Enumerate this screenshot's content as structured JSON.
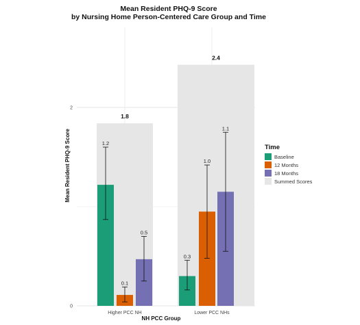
{
  "chart_data": {
    "type": "bar",
    "title": "Mean Resident PHQ-9 Score",
    "subtitle": "by Nursing Home Person-Centered Care Group and Time",
    "xlabel": "NH PCC Group",
    "ylabel": "Mean Resident PHQ-9 Score",
    "ylim": [
      0,
      2.0
    ],
    "yticks": [
      0,
      2
    ],
    "grid": true,
    "legend_position": "right",
    "legend_title": "Time",
    "categories": [
      "Higher PCC NH",
      "Lower PCC NHs"
    ],
    "series": [
      {
        "name": "Baseline",
        "color": "#1b9e77",
        "values": [
          1.22,
          0.3
        ],
        "ci_low": [
          0.87,
          0.16
        ],
        "ci_high": [
          1.6,
          0.46
        ],
        "labels": [
          "1.2",
          "0.3"
        ]
      },
      {
        "name": "12 Months",
        "color": "#d95f02",
        "values": [
          0.11,
          0.95
        ],
        "ci_low": [
          0.04,
          0.48
        ],
        "ci_high": [
          0.19,
          1.42
        ],
        "labels": [
          "0.1",
          "1.0"
        ]
      },
      {
        "name": "18 Months",
        "color": "#7570b3",
        "values": [
          0.47,
          1.15
        ],
        "ci_low": [
          0.25,
          0.55
        ],
        "ci_high": [
          0.7,
          1.75
        ],
        "labels": [
          "0.5",
          "1.1"
        ]
      }
    ],
    "summed": {
      "name": "Summed Scores",
      "color": "#e6e6e6",
      "values": [
        1.84,
        2.43
      ],
      "labels": [
        "1.8",
        "2.4"
      ]
    }
  }
}
